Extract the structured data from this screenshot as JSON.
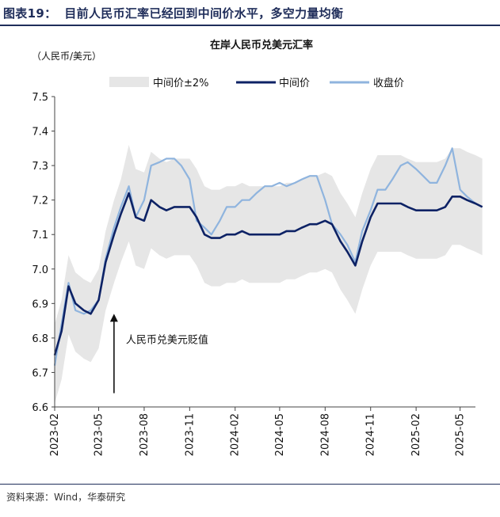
{
  "figure": {
    "number": "图表19：",
    "title": "目前人民币汇率已经回到中间价水平，多空力量均衡",
    "source": "资料来源：Wind，华泰研究"
  },
  "colors": {
    "band": "#e6e6e6",
    "mid": "#0d2265",
    "close": "#8fb4de",
    "rule": "#1f2d5a"
  },
  "chart_data": {
    "type": "line",
    "title": "在岸人民币兑美元汇率",
    "unit_label": "（人民币/美元）",
    "ylim": [
      6.6,
      7.5
    ],
    "yticks": [
      6.6,
      6.7,
      6.8,
      6.9,
      7.0,
      7.1,
      7.2,
      7.3,
      7.4,
      7.5
    ],
    "xlim": [
      "2023-02",
      "2025-06"
    ],
    "xticks": [
      "2023-02",
      "2023-05",
      "2023-08",
      "2023-11",
      "2024-02",
      "2024-05",
      "2024-08",
      "2024-11",
      "2025-02",
      "2025-05"
    ],
    "legend": {
      "position": "top",
      "entries": [
        {
          "name": "中间价±2%",
          "style": "band"
        },
        {
          "name": "中间价",
          "style": "mid"
        },
        {
          "name": "收盘价",
          "style": "close"
        }
      ]
    },
    "annotation": {
      "text": "人民币兑美元贬值",
      "x": "2023-06",
      "y_from": 6.64,
      "y_to": 6.87
    },
    "x": [
      "2023-02-01",
      "2023-02-15",
      "2023-03-01",
      "2023-03-15",
      "2023-04-01",
      "2023-04-15",
      "2023-05-01",
      "2023-05-15",
      "2023-06-01",
      "2023-06-15",
      "2023-07-01",
      "2023-07-15",
      "2023-08-01",
      "2023-08-15",
      "2023-09-01",
      "2023-09-15",
      "2023-10-01",
      "2023-10-15",
      "2023-11-01",
      "2023-11-15",
      "2023-12-01",
      "2023-12-15",
      "2024-01-01",
      "2024-01-15",
      "2024-02-01",
      "2024-02-15",
      "2024-03-01",
      "2024-03-15",
      "2024-04-01",
      "2024-04-15",
      "2024-05-01",
      "2024-05-15",
      "2024-06-01",
      "2024-06-15",
      "2024-07-01",
      "2024-07-15",
      "2024-08-01",
      "2024-08-15",
      "2024-09-01",
      "2024-09-15",
      "2024-10-01",
      "2024-10-15",
      "2024-11-01",
      "2024-11-15",
      "2024-12-01",
      "2024-12-15",
      "2025-01-01",
      "2025-01-15",
      "2025-02-01",
      "2025-02-15",
      "2025-03-01",
      "2025-03-15",
      "2025-04-01",
      "2025-04-15",
      "2025-05-01",
      "2025-05-15",
      "2025-06-01",
      "2025-06-15"
    ],
    "series": [
      {
        "name": "中间价",
        "values": [
          6.75,
          6.82,
          6.95,
          6.9,
          6.88,
          6.87,
          6.91,
          7.02,
          7.1,
          7.16,
          7.22,
          7.15,
          7.14,
          7.2,
          7.18,
          7.17,
          7.18,
          7.18,
          7.18,
          7.15,
          7.1,
          7.09,
          7.09,
          7.1,
          7.1,
          7.11,
          7.1,
          7.1,
          7.1,
          7.1,
          7.1,
          7.11,
          7.11,
          7.12,
          7.13,
          7.13,
          7.14,
          7.13,
          7.08,
          7.05,
          7.01,
          7.08,
          7.15,
          7.19,
          7.19,
          7.19,
          7.19,
          7.18,
          7.17,
          7.17,
          7.17,
          7.17,
          7.18,
          7.21,
          7.21,
          7.2,
          7.19,
          7.18
        ]
      },
      {
        "name": "收盘价",
        "values": [
          6.72,
          6.84,
          6.96,
          6.88,
          6.87,
          6.88,
          6.91,
          7.03,
          7.12,
          7.18,
          7.24,
          7.15,
          7.2,
          7.3,
          7.31,
          7.32,
          7.32,
          7.3,
          7.26,
          7.14,
          7.12,
          7.1,
          7.14,
          7.18,
          7.18,
          7.2,
          7.2,
          7.22,
          7.24,
          7.24,
          7.25,
          7.24,
          7.25,
          7.26,
          7.27,
          7.27,
          7.2,
          7.13,
          7.1,
          7.07,
          7.02,
          7.11,
          7.17,
          7.23,
          7.23,
          7.26,
          7.3,
          7.31,
          7.29,
          7.27,
          7.25,
          7.25,
          7.3,
          7.35,
          7.23,
          7.21,
          7.19,
          7.18
        ]
      },
      {
        "name": "中间价±2%",
        "upper": [
          6.84,
          6.91,
          7.04,
          6.99,
          6.97,
          6.96,
          7.0,
          7.11,
          7.2,
          7.26,
          7.36,
          7.29,
          7.28,
          7.34,
          7.32,
          7.31,
          7.32,
          7.32,
          7.32,
          7.29,
          7.24,
          7.23,
          7.23,
          7.24,
          7.24,
          7.25,
          7.24,
          7.24,
          7.24,
          7.24,
          7.24,
          7.25,
          7.25,
          7.26,
          7.27,
          7.27,
          7.28,
          7.27,
          7.22,
          7.19,
          7.15,
          7.22,
          7.29,
          7.33,
          7.33,
          7.33,
          7.33,
          7.32,
          7.31,
          7.31,
          7.31,
          7.31,
          7.32,
          7.35,
          7.35,
          7.34,
          7.33,
          7.32
        ],
        "lower": [
          6.61,
          6.68,
          6.81,
          6.76,
          6.74,
          6.73,
          6.77,
          6.88,
          6.96,
          7.02,
          7.08,
          7.01,
          7.0,
          7.06,
          7.04,
          7.03,
          7.04,
          7.04,
          7.04,
          7.01,
          6.96,
          6.95,
          6.95,
          6.96,
          6.96,
          6.97,
          6.96,
          6.96,
          6.96,
          6.96,
          6.96,
          6.97,
          6.97,
          6.98,
          6.99,
          6.99,
          7.0,
          6.99,
          6.94,
          6.91,
          6.87,
          6.94,
          7.01,
          7.05,
          7.05,
          7.05,
          7.05,
          7.04,
          7.03,
          7.03,
          7.03,
          7.03,
          7.04,
          7.07,
          7.07,
          7.06,
          7.05,
          7.04
        ]
      }
    ]
  }
}
